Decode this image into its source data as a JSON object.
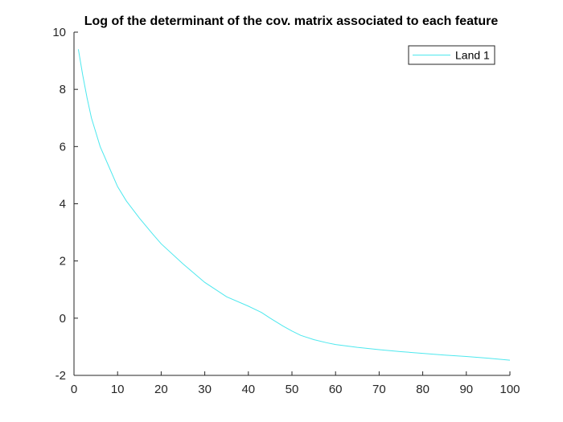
{
  "chart_data": {
    "type": "line",
    "title": "Log of the determinant of the cov. matrix associated to each feature",
    "xlabel": "",
    "ylabel": "",
    "xlim": [
      0,
      100
    ],
    "ylim": [
      -2,
      10
    ],
    "xticks": [
      0,
      10,
      20,
      30,
      40,
      50,
      60,
      70,
      80,
      90,
      100
    ],
    "yticks": [
      -2,
      0,
      2,
      4,
      6,
      8,
      10
    ],
    "grid": false,
    "legend_position": "top-right",
    "series": [
      {
        "name": "Land 1",
        "color": "#4ee8ee",
        "x": [
          1,
          2,
          3,
          4,
          5,
          6,
          8,
          10,
          12,
          15,
          18,
          20,
          25,
          30,
          35,
          40,
          43,
          45,
          48,
          50,
          52,
          55,
          58,
          60,
          65,
          70,
          75,
          80,
          85,
          90,
          95,
          100
        ],
        "y": [
          9.4,
          8.5,
          7.7,
          7.0,
          6.5,
          6.0,
          5.3,
          4.6,
          4.1,
          3.5,
          2.95,
          2.6,
          1.9,
          1.25,
          0.75,
          0.42,
          0.2,
          0.0,
          -0.28,
          -0.45,
          -0.6,
          -0.75,
          -0.86,
          -0.92,
          -1.02,
          -1.1,
          -1.17,
          -1.23,
          -1.29,
          -1.34,
          -1.4,
          -1.47
        ]
      }
    ]
  }
}
